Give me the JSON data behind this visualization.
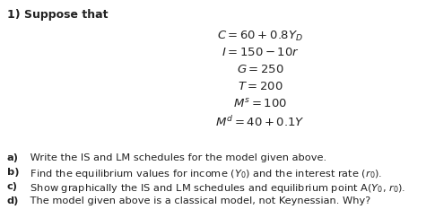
{
  "title": "1) Suppose that",
  "eq_lines": [
    "$C = 60 + 0.8Y_D$",
    "$I = 150 - 10r$",
    "$G = 250$",
    "$T = 200$",
    "$M^s = 100$",
    "$M^d = 40 + 0.1Y$"
  ],
  "q_labels": [
    "a)",
    "b)",
    "c)",
    "d)"
  ],
  "q_texts": [
    " Write the IS and LM schedules for the model given above.",
    " Find the equilibrium values for income ($Y_0$) and the interest rate ($r_0$).",
    " Show graphically the IS and LM schedules and equilibrium point A($Y_0$, $r_0$).",
    " The model given above is a classical model, not Keynessian. Why?"
  ],
  "bg_color": "#ffffff",
  "text_color": "#222222",
  "eq_fontsize": 9.5,
  "q_fontsize": 8.2,
  "title_fontsize": 9.0
}
